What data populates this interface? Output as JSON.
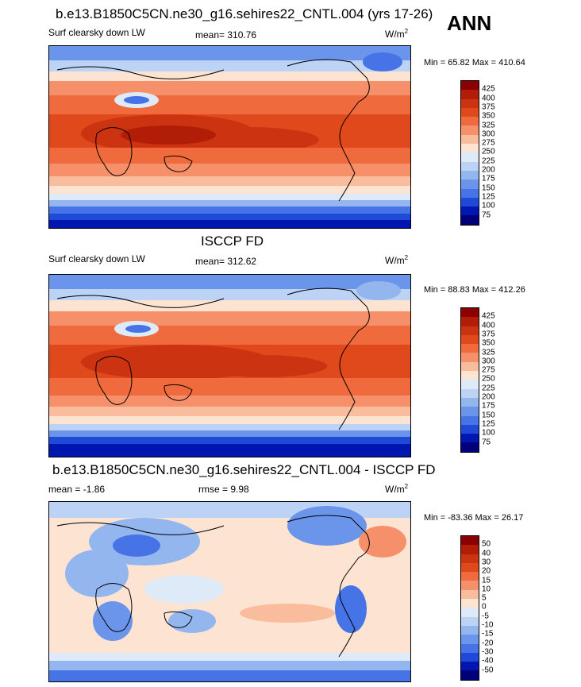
{
  "season": "ANN",
  "panels": [
    {
      "title": "b.e13.B1850C5CN.ne30_g16.sehires22_CNTL.004 (yrs 17-26)",
      "variable": "Surf clearsky down LW",
      "mean_label": "mean= 310.76",
      "units": "W/m",
      "units_exp": "2",
      "minmax": "Min =  65.82 Max = 410.64",
      "kind": "abs"
    },
    {
      "title": "ISCCP FD",
      "variable": "Surf clearsky down LW",
      "mean_label": "mean= 312.62",
      "units": "W/m",
      "units_exp": "2",
      "minmax": "Min =  88.83 Max = 412.26",
      "kind": "abs"
    },
    {
      "title": "b.e13.B1850C5CN.ne30_g16.sehires22_CNTL.004 - ISCCP FD",
      "variable": "mean =  -1.86",
      "mean_label": "rmse =   9.98",
      "units": "W/m",
      "units_exp": "2",
      "minmax": "Min = -83.36 Max =  26.17",
      "kind": "diff"
    }
  ],
  "chart_data": [
    {
      "type": "heatmap",
      "title": "b.e13.B1850C5CN.ne30_g16.sehires22_CNTL.004 (yrs 17-26)",
      "variable": "Surf clearsky down LW",
      "mean": 310.76,
      "min": 65.82,
      "max": 410.64,
      "units": "W/m2",
      "colorbar_levels": [
        "425",
        "400",
        "375",
        "350",
        "325",
        "300",
        "275",
        "250",
        "225",
        "200",
        "175",
        "150",
        "125",
        "100",
        "75"
      ]
    },
    {
      "type": "heatmap",
      "title": "ISCCP FD",
      "variable": "Surf clearsky down LW",
      "mean": 312.62,
      "min": 88.83,
      "max": 412.26,
      "units": "W/m2",
      "colorbar_levels": [
        "425",
        "400",
        "375",
        "350",
        "325",
        "300",
        "275",
        "250",
        "225",
        "200",
        "175",
        "150",
        "125",
        "100",
        "75"
      ]
    },
    {
      "type": "heatmap",
      "title": "b.e13.B1850C5CN.ne30_g16.sehires22_CNTL.004 - ISCCP FD",
      "mean": -1.86,
      "rmse": 9.98,
      "min": -83.36,
      "max": 26.17,
      "units": "W/m2",
      "colorbar_levels": [
        "50",
        "40",
        "30",
        "20",
        "15",
        "10",
        "5",
        "0",
        "-5",
        "-10",
        "-15",
        "-20",
        "-30",
        "-40",
        "-50"
      ]
    }
  ],
  "colors": {
    "abs_scale": [
      "#8b0000",
      "#b21d08",
      "#cc3311",
      "#e0491b",
      "#ef6a3c",
      "#f5906a",
      "#f9bc9c",
      "#fde4d2",
      "#dfeaf8",
      "#bcd3f5",
      "#94b6ef",
      "#6b95ea",
      "#4674e6",
      "#1f4ad8",
      "#0016b0",
      "#00007a"
    ],
    "diff_scale": [
      "#8b0000",
      "#b21d08",
      "#cc3311",
      "#e0491b",
      "#ef6a3c",
      "#f5906a",
      "#f9bc9c",
      "#fde4d2",
      "#dfeaf8",
      "#bcd3f5",
      "#94b6ef",
      "#6b95ea",
      "#4674e6",
      "#1f4ad8",
      "#0016b0",
      "#00007a"
    ]
  }
}
